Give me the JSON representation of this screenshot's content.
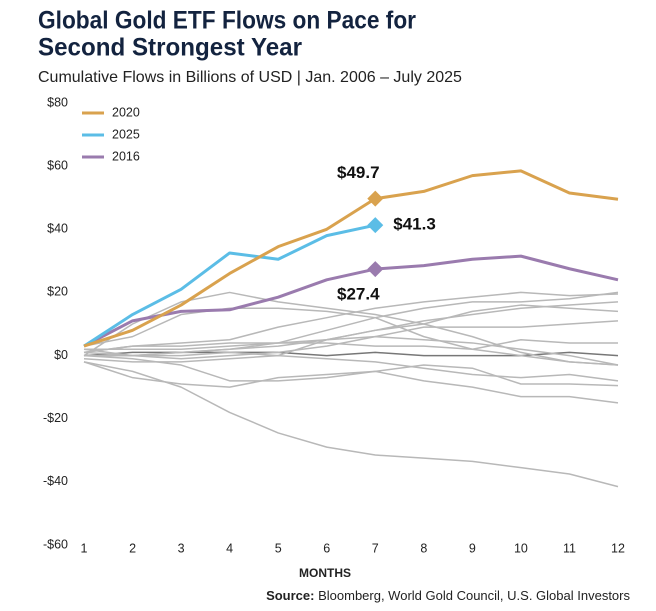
{
  "chart_data": {
    "type": "line",
    "title": [
      "Global Gold ETF Flows on Pace for",
      "Second Strongest Year"
    ],
    "subtitle": "Cumulative Flows in Billions of USD | Jan. 2006 – July 2025",
    "x_label": "MONTHS",
    "source_label": "Source:",
    "source": "Bloomberg, World Gold Council, U.S. Global Investors",
    "x": [
      1,
      2,
      3,
      4,
      5,
      6,
      7,
      8,
      9,
      10,
      11,
      12
    ],
    "xlim": [
      1,
      12
    ],
    "xticks": [
      1,
      2,
      3,
      4,
      5,
      6,
      7,
      8,
      9,
      10,
      11,
      12
    ],
    "ylim": [
      -60,
      80
    ],
    "yticks": [
      {
        "value": -60,
        "label": "-$60"
      },
      {
        "value": -40,
        "label": "-$40"
      },
      {
        "value": -20,
        "label": "-$20"
      },
      {
        "value": 0,
        "label": "$0"
      },
      {
        "value": 20,
        "label": "$20"
      },
      {
        "value": 40,
        "label": "$40"
      },
      {
        "value": 60,
        "label": "$60"
      },
      {
        "value": 80,
        "label": "$80"
      }
    ],
    "grid": false,
    "legend": "top-left",
    "series": [
      {
        "name": "2020",
        "color": "#d9a24e",
        "values": [
          3,
          8,
          16,
          26,
          34.5,
          40,
          49.7,
          52,
          57,
          58.5,
          51.5,
          49.5
        ],
        "value_labels": [
          null,
          null,
          null,
          null,
          null,
          null,
          "$49.7",
          null,
          null,
          null,
          null,
          null
        ]
      },
      {
        "name": "2025",
        "color": "#5bbde6",
        "values": [
          3,
          13,
          21,
          32.5,
          30.5,
          38,
          41.3,
          null,
          null,
          null,
          null,
          null
        ],
        "value_labels": [
          null,
          null,
          null,
          null,
          null,
          null,
          "$41.3",
          null,
          null,
          null,
          null,
          null
        ]
      },
      {
        "name": "2016",
        "color": "#9a7bae",
        "values": [
          3,
          11,
          14,
          14.5,
          18.5,
          24,
          27.4,
          28.5,
          30.5,
          31.5,
          27.5,
          24
        ],
        "value_labels": [
          null,
          null,
          null,
          null,
          null,
          null,
          "$27.4",
          null,
          null,
          null,
          null,
          null
        ]
      },
      {
        "color": "#b8b8b8",
        "values": [
          -2,
          -5,
          -10,
          -18,
          -24.5,
          -29,
          -31.5,
          -32.5,
          -33.5,
          -35.5,
          -37.5,
          -41.5
        ]
      },
      {
        "color": "#b8b8b8",
        "values": [
          0,
          10,
          17,
          20,
          17,
          15,
          13,
          10,
          6,
          1,
          -2,
          -3
        ]
      },
      {
        "color": "#b8b8b8",
        "values": [
          1,
          3,
          4,
          5,
          9,
          12,
          15,
          17,
          18.5,
          20,
          19,
          19.5
        ]
      },
      {
        "color": "#b8b8b8",
        "values": [
          -2,
          -7,
          -9,
          -10,
          -7,
          -6,
          -5,
          -8,
          -10,
          -13,
          -13,
          -15
        ]
      },
      {
        "color": "#b8b8b8",
        "values": [
          0,
          -1,
          -3,
          -8,
          -8,
          -7,
          -5,
          -3,
          -4,
          -9,
          -9,
          -9.5
        ]
      },
      {
        "color": "#b8b8b8",
        "values": [
          1,
          0,
          1,
          2,
          4,
          8,
          12,
          15,
          17,
          17,
          18,
          20
        ]
      },
      {
        "color": "#b8b8b8",
        "values": [
          2,
          0,
          0,
          1,
          0,
          5,
          8,
          11,
          13,
          15,
          16,
          17
        ]
      },
      {
        "color": "#b8b8b8",
        "values": [
          0,
          0,
          -1,
          0,
          1,
          3,
          6,
          9,
          9,
          9,
          10,
          11
        ]
      },
      {
        "color": "#b8b8b8",
        "values": [
          2,
          2,
          2,
          3,
          4,
          5,
          6,
          5,
          4,
          2,
          0,
          -3
        ]
      },
      {
        "color": "#b8b8b8",
        "values": [
          1,
          3,
          3,
          4,
          4,
          4,
          3,
          3,
          2,
          5,
          4,
          4
        ]
      },
      {
        "color": "#b8b8b8",
        "values": [
          -1,
          -2,
          -2,
          -1,
          0,
          -1,
          -2,
          -4,
          -6,
          -7,
          -6,
          -8
        ]
      },
      {
        "color": "#b8b8b8",
        "values": [
          3,
          6,
          13,
          15,
          15,
          14,
          12,
          6,
          2,
          0,
          -2,
          -3
        ]
      },
      {
        "color": "#b8b8b8",
        "values": [
          0,
          0,
          1,
          2,
          3,
          5,
          8,
          10,
          14,
          16,
          15,
          14
        ]
      },
      {
        "color": "#777777",
        "values": [
          0,
          1,
          1,
          1,
          1,
          0,
          1,
          0,
          0,
          0,
          1,
          0
        ]
      }
    ]
  }
}
